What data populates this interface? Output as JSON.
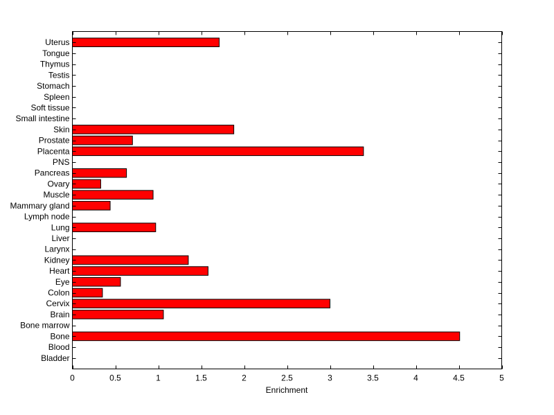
{
  "chart_data": {
    "type": "bar",
    "orientation": "horizontal",
    "title": "",
    "xlabel": "Enrichment",
    "ylabel": "",
    "xlim": [
      0,
      5
    ],
    "x_ticks": [
      "0",
      "0.5",
      "1",
      "1.5",
      "2",
      "2.5",
      "3",
      "3.5",
      "4",
      "4.5",
      "5"
    ],
    "grid": false,
    "legend": "none",
    "bar_color": "#ff0000",
    "bar_edge_color": "#000000",
    "categories": [
      "Bladder",
      "Blood",
      "Bone",
      "Bone marrow",
      "Brain",
      "Cervix",
      "Colon",
      "Eye",
      "Heart",
      "Kidney",
      "Larynx",
      "Liver",
      "Lung",
      "Lymph node",
      "Mammary gland",
      "Muscle",
      "Ovary",
      "Pancreas",
      "PNS",
      "Placenta",
      "Prostate",
      "Skin",
      "Small intestine",
      "Soft tissue",
      "Spleen",
      "Stomach",
      "Testis",
      "Thymus",
      "Tongue",
      "Uterus"
    ],
    "values": [
      0,
      0,
      4.51,
      0,
      1.06,
      3.0,
      0.35,
      0.56,
      1.58,
      1.35,
      0,
      0,
      0.97,
      0,
      0.44,
      0.94,
      0.33,
      0.63,
      0,
      3.39,
      0.7,
      1.88,
      0,
      0,
      0,
      0,
      0,
      0,
      0,
      1.71
    ]
  }
}
